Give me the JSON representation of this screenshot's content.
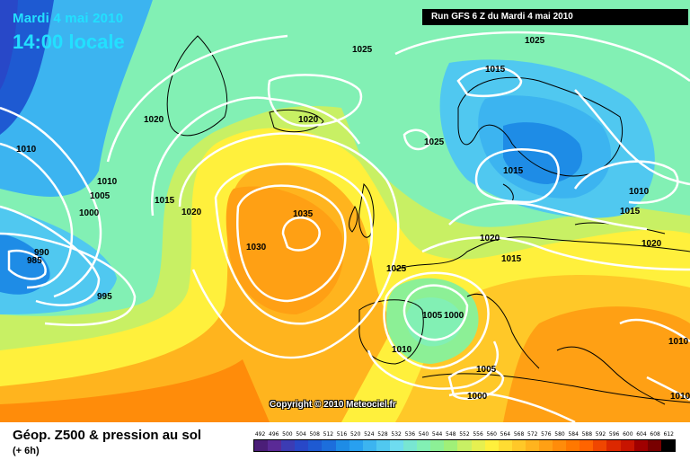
{
  "header": {
    "date": "Mardi 4 mai 2010",
    "local_time": "14:00 locale",
    "run": "Run GFS 6 Z du Mardi 4 mai 2010"
  },
  "copyright": "Copyright © 2010 Meteociel.fr",
  "isobar_labels": [
    "1025",
    "1025",
    "1015",
    "1020",
    "1020",
    "1025",
    "1010",
    "1010",
    "1005",
    "1000",
    "1015",
    "1020",
    "1035",
    "1030",
    "990",
    "985",
    "995",
    "1015",
    "1010",
    "1015",
    "1020",
    "1020",
    "1015",
    "1025",
    "1005",
    "1000",
    "1010",
    "1005",
    "1000",
    "1010",
    "1010"
  ],
  "footer": {
    "product": "Géop. Z500 & pression au sol",
    "step": "(+ 6h)"
  },
  "legend": {
    "values": [
      "492",
      "496",
      "500",
      "504",
      "508",
      "512",
      "516",
      "520",
      "524",
      "528",
      "532",
      "536",
      "540",
      "544",
      "548",
      "552",
      "556",
      "560",
      "564",
      "568",
      "572",
      "576",
      "580",
      "584",
      "588",
      "592",
      "596",
      "600",
      "604",
      "608",
      "612"
    ],
    "colors": [
      "#4b1e78",
      "#5a2a96",
      "#3c3cb4",
      "#2848c8",
      "#1e5ad2",
      "#1c6edc",
      "#1e8ce6",
      "#28a0f0",
      "#3cb4f0",
      "#50c8f0",
      "#6edcf0",
      "#78e6d2",
      "#82f0b4",
      "#8cf096",
      "#a0f078",
      "#c8f064",
      "#e6f050",
      "#fff03c",
      "#ffdc32",
      "#ffc828",
      "#ffb41e",
      "#ffa014",
      "#ff8c0a",
      "#ff7800",
      "#ff6400",
      "#f04600",
      "#dc2800",
      "#c81400",
      "#a00000",
      "#780000",
      "#000000"
    ]
  },
  "colors": {
    "title_cyan": "#22e0ff",
    "isobar": "#ffffff"
  }
}
